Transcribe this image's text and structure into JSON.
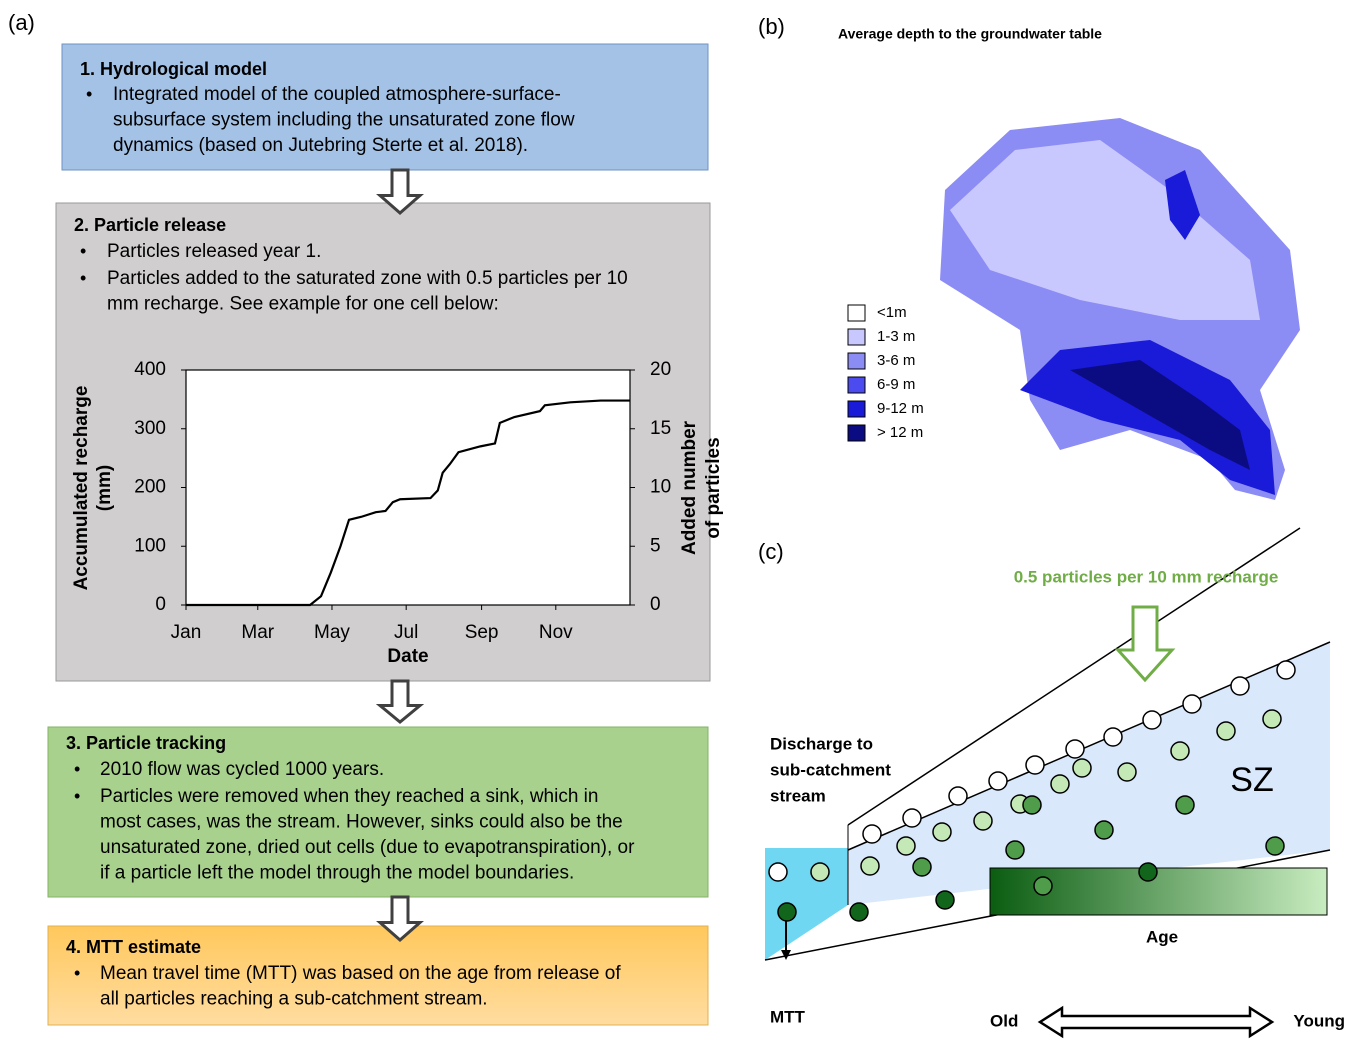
{
  "panel_a": {
    "label": "(a)",
    "boxes": [
      {
        "title": "1. Hydrological model",
        "bullets": [
          [
            "Integrated model of the coupled atmosphere-surface-",
            "subsurface system including the unsaturated zone flow",
            "dynamics (based on Jutebring Sterte et al. 2018)."
          ]
        ]
      },
      {
        "title": "2. Particle release",
        "bullets": [
          [
            "Particles released year 1."
          ],
          [
            "Particles added to the saturated zone with 0.5 particles per 10",
            "mm recharge. See example for one cell below:"
          ]
        ]
      },
      {
        "title": "3. Particle tracking",
        "bullets": [
          [
            "2010 flow was cycled 1000 years."
          ],
          [
            "Particles were removed when they reached a sink, which in",
            "most cases, was the stream. However, sinks could also be the",
            "unsaturated zone, dried out cells (due to evapotranspiration), or",
            "if a particle left the model through the model boundaries."
          ]
        ]
      },
      {
        "title": "4. MTT estimate",
        "bullets": [
          [
            "Mean travel time (MTT) was based on the age from release of",
            "all particles reaching a sub-catchment stream."
          ]
        ]
      }
    ]
  },
  "chart_data": {
    "type": "line",
    "xlabel": "Date",
    "ylabel": [
      "Accumulated recharge",
      "(mm)"
    ],
    "y2label": [
      "Added number",
      "of particles"
    ],
    "x": [
      1,
      103,
      112,
      120,
      128,
      135,
      145,
      157,
      165,
      171,
      177,
      202,
      208,
      212,
      218,
      225,
      243,
      255,
      259,
      271,
      292,
      296,
      317,
      342,
      366
    ],
    "series": [
      {
        "name": "Accumulated recharge",
        "color": "#000000",
        "values": [
          0,
          0,
          15,
          55,
          100,
          145,
          150,
          158,
          160,
          175,
          180,
          182,
          195,
          225,
          240,
          260,
          270,
          275,
          310,
          320,
          330,
          340,
          345,
          348,
          348
        ]
      }
    ],
    "xlim": [
      1,
      366
    ],
    "xticks": [
      {
        "value": 1,
        "label": "Jan"
      },
      {
        "value": 60,
        "label": "Mar"
      },
      {
        "value": 121,
        "label": "May"
      },
      {
        "value": 182,
        "label": "Jul"
      },
      {
        "value": 244,
        "label": "Sep"
      },
      {
        "value": 305,
        "label": "Nov"
      }
    ],
    "ylim": [
      0,
      400
    ],
    "yticks": [
      0,
      100,
      200,
      300,
      400
    ],
    "y2lim": [
      0,
      20
    ],
    "y2ticks": [
      0,
      5,
      10,
      15,
      20
    ]
  },
  "panel_b": {
    "label": "(b)",
    "title": "Average depth to the groundwater table",
    "legend": [
      {
        "label": "<1m",
        "color": "#ffffff"
      },
      {
        "label": "1-3 m",
        "color": "#c8c8ff"
      },
      {
        "label": "3-6 m",
        "color": "#8c8cf5"
      },
      {
        "label": "6-9 m",
        "color": "#4b4bf0"
      },
      {
        "label": "9-12 m",
        "color": "#1a1ad9"
      },
      {
        "label": "> 12 m",
        "color": "#0c0c82"
      }
    ]
  },
  "panel_c": {
    "label": "(c)",
    "recharge": "0.5 particles per 10 mm recharge",
    "discharge": [
      "Discharge to",
      "sub-catchment",
      "stream"
    ],
    "zone": "SZ",
    "mtt": "MTT",
    "age": "Age",
    "old": "Old",
    "young": "Young"
  }
}
